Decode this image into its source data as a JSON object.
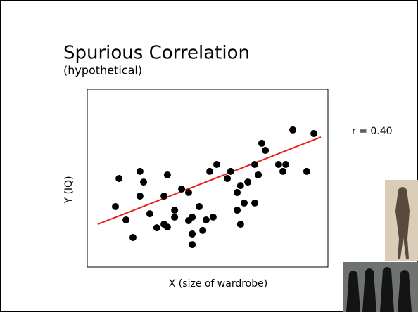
{
  "chart_data": {
    "type": "scatter",
    "title": "Spurious Correlation",
    "subtitle": "(hypothetical)",
    "x_label": "X (size of wardrobe)",
    "y_label": "Y (IQ)",
    "annotation": "r = 0.40",
    "xlim": [
      0,
      100
    ],
    "ylim": [
      0,
      100
    ],
    "color": "#000000",
    "x": [
      11.7,
      13.2,
      16.1,
      19.0,
      21.9,
      23.4,
      21.9,
      26.0,
      28.9,
      31.9,
      33.3,
      31.9,
      33.3,
      36.3,
      36.3,
      39.2,
      42.1,
      42.1,
      43.6,
      43.6,
      46.5,
      48.0,
      49.4,
      52.3,
      50.9,
      53.8,
      43.6,
      58.2,
      59.6,
      62.3,
      62.3,
      63.7,
      63.7,
      65.2,
      66.7,
      69.6,
      69.6,
      71.1,
      72.5,
      74.0,
      79.5,
      81.3,
      82.5,
      85.4,
      91.2,
      94.2
    ],
    "values": [
      34.0,
      49.8,
      26.5,
      16.6,
      53.8,
      47.8,
      39.9,
      30.0,
      22.1,
      24.1,
      22.5,
      39.9,
      51.8,
      32.0,
      28.1,
      43.9,
      41.9,
      26.1,
      28.1,
      18.6,
      34.0,
      20.6,
      26.5,
      28.1,
      53.8,
      57.7,
      12.6,
      49.8,
      53.8,
      32.0,
      41.9,
      45.8,
      24.1,
      36.0,
      47.8,
      36.0,
      57.7,
      51.8,
      69.6,
      65.6,
      57.7,
      53.8,
      57.7,
      77.1,
      53.8,
      75.1
    ],
    "trend_line": {
      "x": [
        4.4,
        97.1
      ],
      "values": [
        24.1,
        73.1
      ],
      "color": "#e8201a"
    }
  }
}
